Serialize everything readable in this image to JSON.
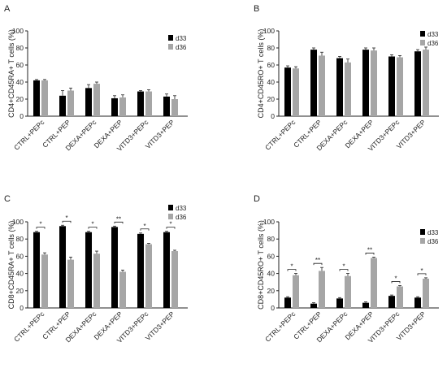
{
  "colors": {
    "d33": "#000000",
    "d36": "#a6a6a6",
    "axis": "#222222"
  },
  "chart_data": [
    {
      "panel": "A",
      "type": "bar",
      "ylabel": "CD4+CD45RA+ T cells (%)",
      "ylim": [
        0,
        100
      ],
      "yticks": [
        0,
        20,
        40,
        60,
        80,
        100
      ],
      "categories": [
        "CTRL+PEPc",
        "CTRL+PEP",
        "DEXA+PEPc",
        "DEXA+PEP",
        "VITD3+PEPc",
        "VITD3+PEP"
      ],
      "series": [
        {
          "name": "d33",
          "values": [
            42,
            24,
            33,
            21,
            29,
            23
          ],
          "errors": [
            1,
            6,
            4,
            3,
            1,
            3
          ]
        },
        {
          "name": "d36",
          "values": [
            42,
            30,
            38,
            22,
            29,
            20
          ],
          "errors": [
            1,
            3,
            2,
            3,
            2,
            4
          ]
        }
      ],
      "legend": "top-right",
      "significance": []
    },
    {
      "panel": "B",
      "type": "bar",
      "ylabel": "CD4+CD45RO+ T cells (%)",
      "ylim": [
        0,
        100
      ],
      "yticks": [
        0,
        20,
        40,
        60,
        80,
        100
      ],
      "categories": [
        "CTRL+PEPc",
        "CTRL+PEP",
        "DEXA+PEPc",
        "DEXA+PEP",
        "VITD3+PEPc",
        "VITD3+PEP"
      ],
      "series": [
        {
          "name": "d33",
          "values": [
            57,
            78,
            68,
            78,
            70,
            76
          ],
          "errors": [
            2,
            2,
            2,
            2,
            2,
            2
          ]
        },
        {
          "name": "d36",
          "values": [
            56,
            71,
            63,
            77,
            69,
            78
          ],
          "errors": [
            2,
            4,
            4,
            3,
            2,
            3
          ]
        }
      ],
      "legend": "top-right",
      "significance": []
    },
    {
      "panel": "C",
      "type": "bar",
      "ylabel": "CD8+CD45RA+ T cells (%)",
      "ylim": [
        0,
        100
      ],
      "yticks": [
        0,
        20,
        40,
        60,
        80,
        100
      ],
      "categories": [
        "CTRL+PEPc",
        "CTRL+PEP",
        "DEXA+PEPc",
        "DEXA+PEP",
        "VITD3+PEPc",
        "VITD3+PEP"
      ],
      "series": [
        {
          "name": "d33",
          "values": [
            88,
            95,
            88,
            94,
            86,
            88
          ],
          "errors": [
            1,
            1,
            1,
            1,
            1,
            1
          ]
        },
        {
          "name": "d36",
          "values": [
            62,
            56,
            63,
            42,
            74,
            66
          ],
          "errors": [
            2,
            3,
            3,
            2,
            1,
            1
          ]
        }
      ],
      "legend": "top-right",
      "significance": [
        "*",
        "*",
        "*",
        "**",
        "*",
        "*"
      ]
    },
    {
      "panel": "D",
      "type": "bar",
      "ylabel": "CD8+CD45RO+ T cells (%)",
      "ylim": [
        0,
        100
      ],
      "yticks": [
        0,
        20,
        40,
        60,
        80,
        100
      ],
      "categories": [
        "CTRL+PEPc",
        "CTRL+PEP",
        "DEXA+PEPc",
        "DEXA+PEP",
        "VITD3+PEPc",
        "VITD3+PEP"
      ],
      "series": [
        {
          "name": "d33",
          "values": [
            12,
            5,
            11,
            6,
            14,
            12
          ],
          "errors": [
            1,
            1,
            1,
            1,
            1,
            1
          ]
        },
        {
          "name": "d36",
          "values": [
            38,
            43,
            37,
            58,
            25,
            34
          ],
          "errors": [
            2,
            4,
            3,
            1,
            1,
            1
          ]
        }
      ],
      "legend": "top-right",
      "significance": [
        "*",
        "**",
        "*",
        "**",
        "*",
        "*"
      ]
    }
  ]
}
